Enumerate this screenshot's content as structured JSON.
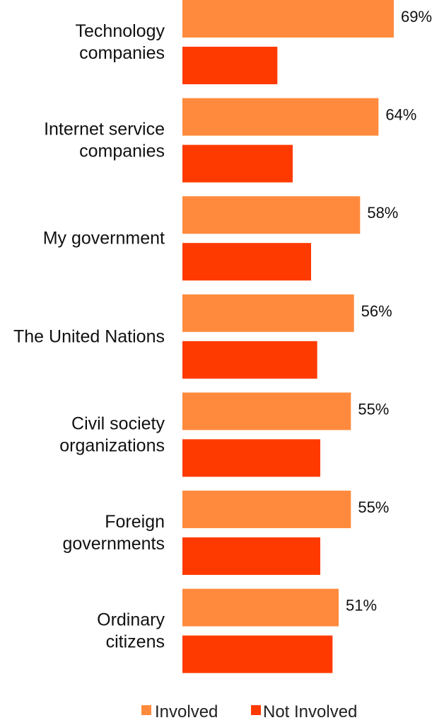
{
  "colors": {
    "involved": "#FF8A3D",
    "not_involved": "#FF3A00"
  },
  "chart_data": {
    "type": "bar",
    "orientation": "horizontal",
    "categories": [
      [
        "Technology",
        "companies"
      ],
      [
        "Internet service",
        "companies"
      ],
      [
        "My government"
      ],
      [
        "The United Nations"
      ],
      [
        "Civil society",
        "organizations"
      ],
      [
        "Foreign",
        "governments"
      ],
      [
        "Ordinary",
        "citizens"
      ]
    ],
    "series": [
      {
        "name": "Involved",
        "values": [
          69,
          64,
          58,
          56,
          55,
          55,
          51
        ],
        "value_labels": [
          "69%",
          "64%",
          "58%",
          "56%",
          "55%",
          "55%",
          "51%"
        ]
      },
      {
        "name": "Not Involved",
        "values": [
          31,
          36,
          42,
          44,
          45,
          45,
          49
        ]
      }
    ],
    "xlim": [
      0,
      70
    ],
    "grid": false,
    "legend": "bottom"
  }
}
